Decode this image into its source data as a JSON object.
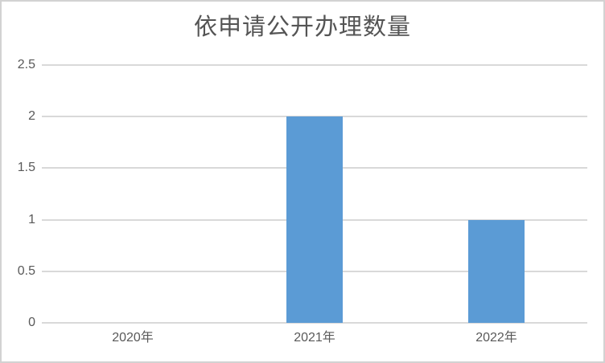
{
  "chart_data": {
    "type": "bar",
    "title": "依申请公开办理数量",
    "categories": [
      "2020年",
      "2021年",
      "2022年"
    ],
    "values": [
      0,
      2,
      1
    ],
    "xlabel": "",
    "ylabel": "",
    "ylim": [
      0,
      2.5
    ],
    "ytick_step": 0.5,
    "ytick_labels": [
      "0",
      "0.5",
      "1",
      "1.5",
      "2",
      "2.5"
    ],
    "grid": true,
    "legend": false
  },
  "style": {
    "bar_color": "#5B9BD5",
    "gridline_color": "#D9D9D9",
    "axis_line_color": "#D9D9D9",
    "tick_label_color": "#595959",
    "title_color": "#545454",
    "background_color": "#FFFFFF",
    "frame_border_color": "#D2D2D2"
  }
}
